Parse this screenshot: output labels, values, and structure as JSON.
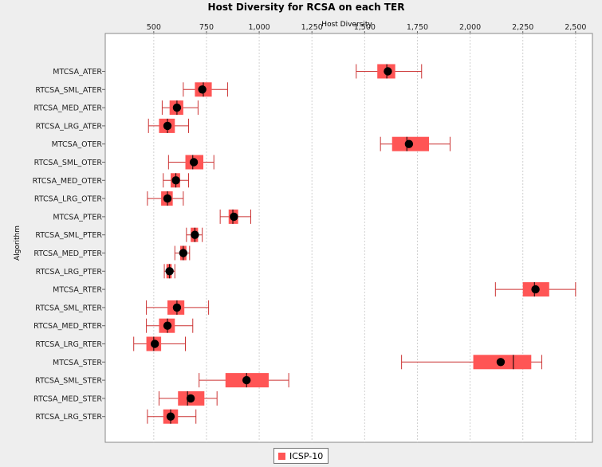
{
  "chart_data": {
    "type": "boxplot",
    "title": "Host Diversity for RCSA on each TER",
    "xlabel": "Host Diversity",
    "ylabel": "Algorithm",
    "xlim": [
      270,
      2580
    ],
    "xticks": [
      500,
      750,
      1000,
      1250,
      1500,
      1750,
      2000,
      2250,
      2500
    ],
    "xtick_labels": [
      "500",
      "750",
      "1,000",
      "1,250",
      "1,500",
      "1,750",
      "2,000",
      "2,250",
      "2,500"
    ],
    "grid": true,
    "legend_position": "bottom",
    "colors": {
      "box": "#ff5555",
      "whisker": "#cc3333",
      "mean": "#000000",
      "median": "#000000",
      "grid": "#d0d0d0"
    },
    "series": [
      {
        "name": "ICSP-10",
        "boxes": [
          {
            "category": "MTCSA_ATER",
            "min": 1460,
            "q1": 1560,
            "median": 1605,
            "q3": 1645,
            "max": 1770,
            "mean": 1610
          },
          {
            "category": "RTCSA_SML_ATER",
            "min": 640,
            "q1": 695,
            "median": 735,
            "q3": 775,
            "max": 850,
            "mean": 730
          },
          {
            "category": "RTCSA_MED_ATER",
            "min": 540,
            "q1": 575,
            "median": 610,
            "q3": 640,
            "max": 710,
            "mean": 610
          },
          {
            "category": "RTCSA_LRG_ATER",
            "min": 475,
            "q1": 525,
            "median": 565,
            "q3": 600,
            "max": 665,
            "mean": 565
          },
          {
            "category": "MTCSA_OTER",
            "min": 1575,
            "q1": 1630,
            "median": 1700,
            "q3": 1805,
            "max": 1905,
            "mean": 1710
          },
          {
            "category": "RTCSA_SML_OTER",
            "min": 570,
            "q1": 650,
            "median": 685,
            "q3": 735,
            "max": 785,
            "mean": 690
          },
          {
            "category": "RTCSA_MED_OTER",
            "min": 545,
            "q1": 580,
            "median": 605,
            "q3": 625,
            "max": 665,
            "mean": 605
          },
          {
            "category": "RTCSA_LRG_OTER",
            "min": 470,
            "q1": 535,
            "median": 565,
            "q3": 590,
            "max": 640,
            "mean": 565
          },
          {
            "category": "MTCSA_PTER",
            "min": 815,
            "q1": 855,
            "median": 875,
            "q3": 900,
            "max": 960,
            "mean": 880
          },
          {
            "category": "RTCSA_SML_PTER",
            "min": 655,
            "q1": 675,
            "median": 695,
            "q3": 710,
            "max": 730,
            "mean": 695
          },
          {
            "category": "RTCSA_MED_PTER",
            "min": 600,
            "q1": 625,
            "median": 640,
            "q3": 655,
            "max": 670,
            "mean": 640
          },
          {
            "category": "RTCSA_LRG_PTER",
            "min": 550,
            "q1": 560,
            "median": 575,
            "q3": 585,
            "max": 600,
            "mean": 575
          },
          {
            "category": "MTCSA_RTER",
            "min": 2120,
            "q1": 2250,
            "median": 2305,
            "q3": 2375,
            "max": 2500,
            "mean": 2310
          },
          {
            "category": "RTCSA_SML_RTER",
            "min": 465,
            "q1": 565,
            "median": 610,
            "q3": 645,
            "max": 760,
            "mean": 610
          },
          {
            "category": "RTCSA_MED_RTER",
            "min": 465,
            "q1": 525,
            "median": 565,
            "q3": 600,
            "max": 685,
            "mean": 565
          },
          {
            "category": "RTCSA_LRG_RTER",
            "min": 405,
            "q1": 465,
            "median": 500,
            "q3": 535,
            "max": 650,
            "mean": 505
          },
          {
            "category": "MTCSA_STER",
            "min": 1675,
            "q1": 2015,
            "median": 2205,
            "q3": 2290,
            "max": 2340,
            "mean": 2145
          },
          {
            "category": "RTCSA_SML_STER",
            "min": 715,
            "q1": 840,
            "median": 940,
            "q3": 1045,
            "max": 1140,
            "mean": 940
          },
          {
            "category": "RTCSA_MED_STER",
            "min": 525,
            "q1": 615,
            "median": 660,
            "q3": 740,
            "max": 800,
            "mean": 675
          },
          {
            "category": "RTCSA_LRG_STER",
            "min": 470,
            "q1": 545,
            "median": 580,
            "q3": 615,
            "max": 700,
            "mean": 580
          }
        ]
      }
    ]
  },
  "legend": {
    "items": [
      {
        "label": "ICSP-10",
        "color": "#ff5555"
      }
    ]
  }
}
